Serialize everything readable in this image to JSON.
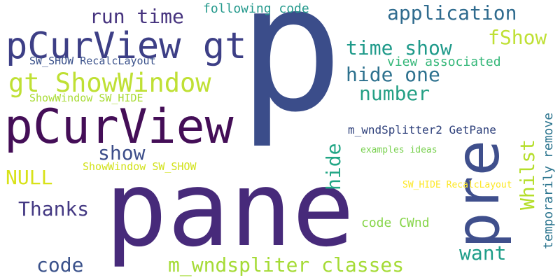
{
  "wordcloud": {
    "words": [
      {
        "id": "p",
        "text": "p",
        "color": "#3b4d8a"
      },
      {
        "id": "pane",
        "text": "pane",
        "color": "#472a7a"
      },
      {
        "id": "pre",
        "text": "pre",
        "color": "#3f4f8c"
      },
      {
        "id": "pcurview",
        "text": "pCurView",
        "color": "#440e57"
      },
      {
        "id": "pcurview-gt",
        "text": "pCurView gt",
        "color": "#3d3f86"
      },
      {
        "id": "gt-showwindow",
        "text": "gt ShowWindow",
        "color": "#bfe034"
      },
      {
        "id": "run-time",
        "text": "run time",
        "color": "#46337e"
      },
      {
        "id": "application",
        "text": "application",
        "color": "#2f6b8e"
      },
      {
        "id": "following-code",
        "text": "following code",
        "color": "#24998c"
      },
      {
        "id": "time-show",
        "text": "time show",
        "color": "#1f9a8a"
      },
      {
        "id": "fshow",
        "text": "fShow",
        "color": "#bfe034"
      },
      {
        "id": "hide-one",
        "text": "hide one",
        "color": "#2d718e"
      },
      {
        "id": "view-associated",
        "text": "view associated",
        "color": "#35b779"
      },
      {
        "id": "number",
        "text": "number",
        "color": "#25a085"
      },
      {
        "id": "sw-show-recalclayout",
        "text": "SW_SHOW RecalcLayout",
        "color": "#3b528b"
      },
      {
        "id": "showwindow-sw-hide",
        "text": "ShowWindow SW_HIDE",
        "color": "#a8db34"
      },
      {
        "id": "show",
        "text": "show",
        "color": "#3d4e8a"
      },
      {
        "id": "m-wndsplitter2-getpane",
        "text": "m_wndSplitter2 GetPane",
        "color": "#2d3f7a"
      },
      {
        "id": "whilst",
        "text": "Whilst",
        "color": "#b5de2b"
      },
      {
        "id": "temporarily-remove",
        "text": "temporarily remove",
        "color": "#2b748e"
      },
      {
        "id": "examples-ideas",
        "text": "examples ideas",
        "color": "#7ad151"
      },
      {
        "id": "showwindow-sw-show",
        "text": "ShowWindow SW_SHOW",
        "color": "#d2e21b"
      },
      {
        "id": "null",
        "text": "NULL",
        "color": "#d8e219"
      },
      {
        "id": "hide",
        "text": "hide",
        "color": "#21a685"
      },
      {
        "id": "thanks",
        "text": "Thanks",
        "color": "#443983"
      },
      {
        "id": "sw-hide-recalclayout",
        "text": "SW_HIDE RecalcLayout",
        "color": "#fde725"
      },
      {
        "id": "code-cwnd",
        "text": "code CWnd",
        "color": "#86d549"
      },
      {
        "id": "want",
        "text": "want",
        "color": "#1f9e89"
      },
      {
        "id": "code",
        "text": "code",
        "color": "#3b528b"
      },
      {
        "id": "m-wndspliter-classes",
        "text": "m_wndspliter classes",
        "color": "#a5db36"
      }
    ]
  }
}
